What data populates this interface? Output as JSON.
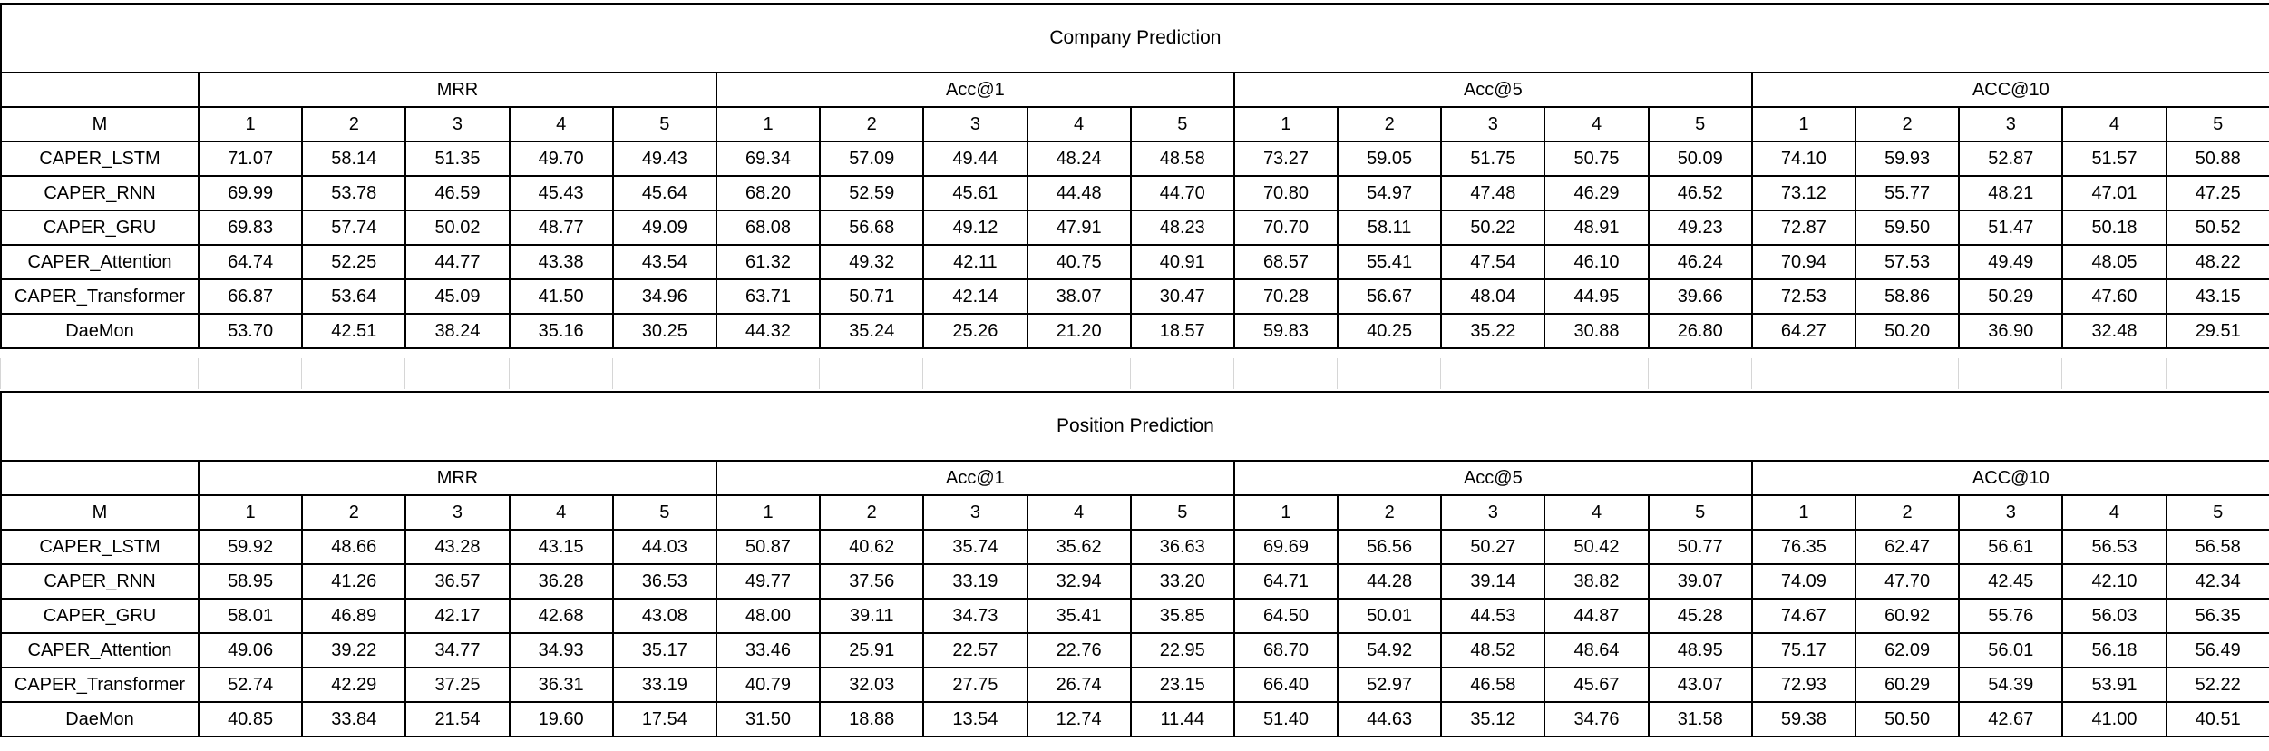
{
  "company": {
    "title": "Company Prediction",
    "groups": [
      "MRR",
      "Acc@1",
      "Acc@5",
      "ACC@10"
    ],
    "col_header_label": "M",
    "cols": [
      "1",
      "2",
      "3",
      "4",
      "5"
    ],
    "rows": [
      {
        "model": "CAPER_LSTM",
        "values": [
          "71.07",
          "58.14",
          "51.35",
          "49.70",
          "49.43",
          "69.34",
          "57.09",
          "49.44",
          "48.24",
          "48.58",
          "73.27",
          "59.05",
          "51.75",
          "50.75",
          "50.09",
          "74.10",
          "59.93",
          "52.87",
          "51.57",
          "50.88"
        ]
      },
      {
        "model": "CAPER_RNN",
        "values": [
          "69.99",
          "53.78",
          "46.59",
          "45.43",
          "45.64",
          "68.20",
          "52.59",
          "45.61",
          "44.48",
          "44.70",
          "70.80",
          "54.97",
          "47.48",
          "46.29",
          "46.52",
          "73.12",
          "55.77",
          "48.21",
          "47.01",
          "47.25"
        ]
      },
      {
        "model": "CAPER_GRU",
        "values": [
          "69.83",
          "57.74",
          "50.02",
          "48.77",
          "49.09",
          "68.08",
          "56.68",
          "49.12",
          "47.91",
          "48.23",
          "70.70",
          "58.11",
          "50.22",
          "48.91",
          "49.23",
          "72.87",
          "59.50",
          "51.47",
          "50.18",
          "50.52"
        ]
      },
      {
        "model": "CAPER_Attention",
        "values": [
          "64.74",
          "52.25",
          "44.77",
          "43.38",
          "43.54",
          "61.32",
          "49.32",
          "42.11",
          "40.75",
          "40.91",
          "68.57",
          "55.41",
          "47.54",
          "46.10",
          "46.24",
          "70.94",
          "57.53",
          "49.49",
          "48.05",
          "48.22"
        ]
      },
      {
        "model": "CAPER_Transformer",
        "values": [
          "66.87",
          "53.64",
          "45.09",
          "41.50",
          "34.96",
          "63.71",
          "50.71",
          "42.14",
          "38.07",
          "30.47",
          "70.28",
          "56.67",
          "48.04",
          "44.95",
          "39.66",
          "72.53",
          "58.86",
          "50.29",
          "47.60",
          "43.15"
        ]
      },
      {
        "model": "DaeMon",
        "values": [
          "53.70",
          "42.51",
          "38.24",
          "35.16",
          "30.25",
          "44.32",
          "35.24",
          "25.26",
          "21.20",
          "18.57",
          "59.83",
          "40.25",
          "35.22",
          "30.88",
          "26.80",
          "64.27",
          "50.20",
          "36.90",
          "32.48",
          "29.51"
        ]
      }
    ]
  },
  "position": {
    "title": "Position Prediction",
    "groups": [
      "MRR",
      "Acc@1",
      "Acc@5",
      "ACC@10"
    ],
    "col_header_label": "M",
    "cols": [
      "1",
      "2",
      "3",
      "4",
      "5"
    ],
    "rows": [
      {
        "model": "CAPER_LSTM",
        "values": [
          "59.92",
          "48.66",
          "43.28",
          "43.15",
          "44.03",
          "50.87",
          "40.62",
          "35.74",
          "35.62",
          "36.63",
          "69.69",
          "56.56",
          "50.27",
          "50.42",
          "50.77",
          "76.35",
          "62.47",
          "56.61",
          "56.53",
          "56.58"
        ]
      },
      {
        "model": "CAPER_RNN",
        "values": [
          "58.95",
          "41.26",
          "36.57",
          "36.28",
          "36.53",
          "49.77",
          "37.56",
          "33.19",
          "32.94",
          "33.20",
          "64.71",
          "44.28",
          "39.14",
          "38.82",
          "39.07",
          "74.09",
          "47.70",
          "42.45",
          "42.10",
          "42.34"
        ]
      },
      {
        "model": "CAPER_GRU",
        "values": [
          "58.01",
          "46.89",
          "42.17",
          "42.68",
          "43.08",
          "48.00",
          "39.11",
          "34.73",
          "35.41",
          "35.85",
          "64.50",
          "50.01",
          "44.53",
          "44.87",
          "45.28",
          "74.67",
          "60.92",
          "55.76",
          "56.03",
          "56.35"
        ]
      },
      {
        "model": "CAPER_Attention",
        "values": [
          "49.06",
          "39.22",
          "34.77",
          "34.93",
          "35.17",
          "33.46",
          "25.91",
          "22.57",
          "22.76",
          "22.95",
          "68.70",
          "54.92",
          "48.52",
          "48.64",
          "48.95",
          "75.17",
          "62.09",
          "56.01",
          "56.18",
          "56.49"
        ]
      },
      {
        "model": "CAPER_Transformer",
        "values": [
          "52.74",
          "42.29",
          "37.25",
          "36.31",
          "33.19",
          "40.79",
          "32.03",
          "27.75",
          "26.74",
          "23.15",
          "66.40",
          "52.97",
          "46.58",
          "45.67",
          "43.07",
          "72.93",
          "60.29",
          "54.39",
          "53.91",
          "52.22"
        ]
      },
      {
        "model": "DaeMon",
        "values": [
          "40.85",
          "33.84",
          "21.54",
          "19.60",
          "17.54",
          "31.50",
          "18.88",
          "13.54",
          "12.74",
          "11.44",
          "51.40",
          "44.63",
          "35.12",
          "34.76",
          "31.58",
          "59.38",
          "50.50",
          "42.67",
          "41.00",
          "40.51"
        ]
      }
    ]
  }
}
